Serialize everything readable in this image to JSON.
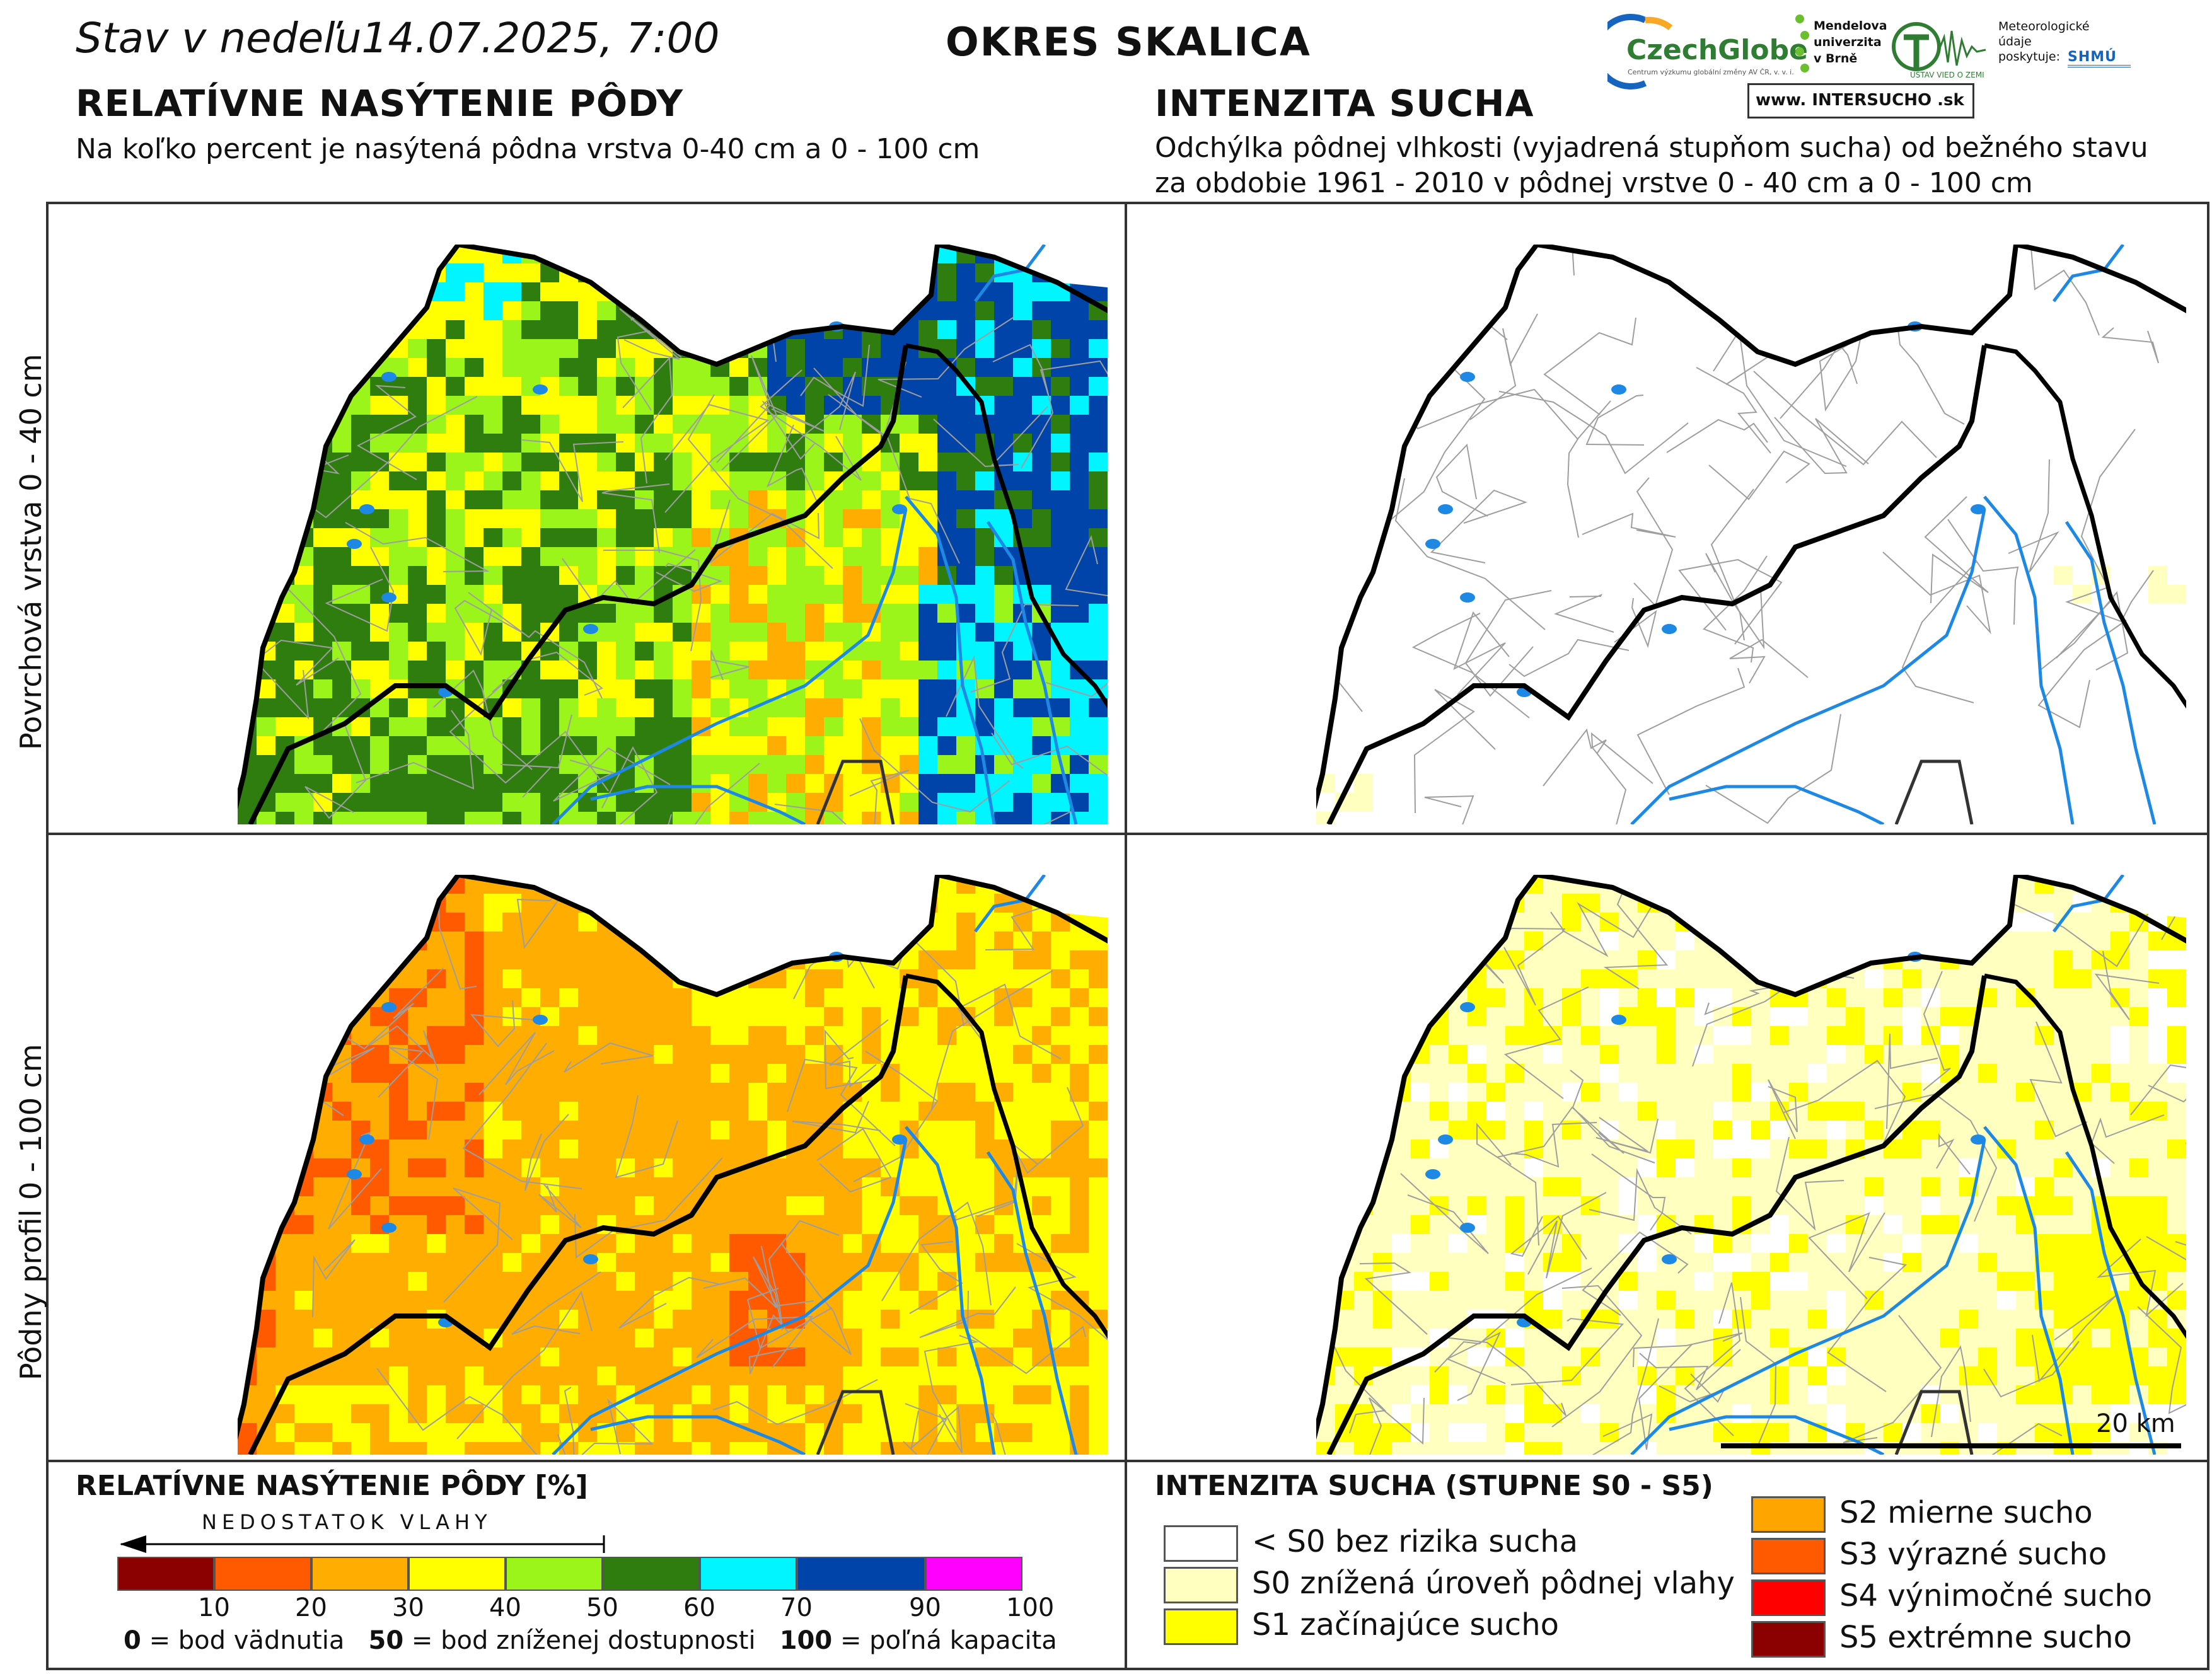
{
  "header": {
    "date_prefix": "Stav v nedeľu",
    "date_value": "14.07.2025, 7:00",
    "district": "OKRES SKALICA"
  },
  "left_section": {
    "title": "RELATÍVNE NASÝTENIE PÔDY",
    "subtitle": "Na koľko percent je nasýtená pôdna vrstva 0-40 cm a 0 - 100 cm"
  },
  "right_section": {
    "title": "INTENZITA SUCHA",
    "subtitle_line1": "Odchýlka pôdnej vlhkosti (vyjadrená stupňom sucha) od bežného stavu",
    "subtitle_line2": "za obdobie 1961 - 2010 v pôdnej vrstve 0 - 40 cm a 0 - 100 cm"
  },
  "logos": {
    "czechglobe": "CzechGlobe",
    "czechglobe_sub": "Centrum výzkumu globální změny AV ČR, v. v. i.",
    "mendelu": "Mendelova univerzita v Brně",
    "uvoz": "ÚSTAV VIED O ZEMI",
    "meteo_note": "Meteorologické údaje poskytuje:",
    "shmu": "SHMÚ",
    "intersucho": "www. INTERSUCHO .sk"
  },
  "row_labels": {
    "top": "Povrchová vrstva 0 - 40 cm",
    "bottom": "Pôdny profil 0 - 100 cm"
  },
  "scalebar": {
    "label": "20 km"
  },
  "saturation_legend": {
    "title": "RELATÍVNE NASÝTENIE PÔDY [%]",
    "arrow_label": "NEDOSTATOK VLAHY",
    "colors": [
      "#8b0000",
      "#ff5a00",
      "#ffad00",
      "#ffff00",
      "#9cf51a",
      "#2e7d0e",
      "#00f5ff",
      "#0044aa",
      "#ff00ff"
    ],
    "ticks": [
      "10",
      "20",
      "30",
      "40",
      "50",
      "60",
      "70",
      "90",
      "100"
    ],
    "note_0": "0",
    "note_0_text": "= bod vädnutia",
    "note_50": "50",
    "note_50_text": "= bod zníženej dostupnosti",
    "note_100": "100",
    "note_100_text": "= poľná kapacita"
  },
  "drought_legend": {
    "title": "INTENZITA SUCHA (STUPNE S0 - S5)",
    "items": [
      {
        "label": "< S0 bez rizika sucha",
        "color": "#ffffff"
      },
      {
        "label": "S0 znížená úroveň pôdnej vlahy",
        "color": "#ffffc0"
      },
      {
        "label": "S1 začínajúce sucho",
        "color": "#ffff00"
      },
      {
        "label": "S2 mierne sucho",
        "color": "#ffa500"
      },
      {
        "label": "S3 výrazné sucho",
        "color": "#ff5a00"
      },
      {
        "label": "S4 výnimočné sucho",
        "color": "#ff0000"
      },
      {
        "label": "S5 extrémne sucho",
        "color": "#8b0000"
      }
    ]
  },
  "map_colors": {
    "water": "#1e88e5",
    "border": "#000000",
    "municipal": "#9e9e9e"
  }
}
